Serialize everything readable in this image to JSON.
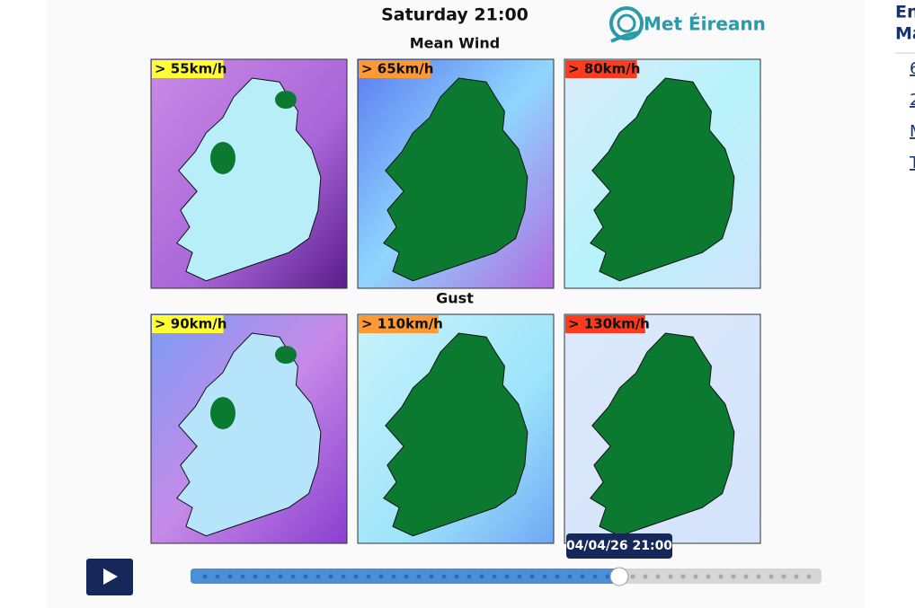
{
  "header": {
    "title": "Saturday 21:00",
    "logo": "Met Éireann"
  },
  "sections": [
    {
      "title": "Mean Wind",
      "panels": [
        {
          "label": "> 55km/h"
        },
        {
          "label": "> 65km/h"
        },
        {
          "label": "> 80km/h"
        }
      ]
    },
    {
      "title": "Gust",
      "panels": [
        {
          "label": "> 90km/h"
        },
        {
          "label": "> 110km/h"
        },
        {
          "label": "> 130km/h"
        }
      ]
    }
  ],
  "timeline": {
    "tooltip": "04/04/26 21:00"
  },
  "sidebar": {
    "heading": [
      "En",
      "Ma"
    ],
    "items": [
      "6",
      "2",
      "M",
      "T"
    ]
  }
}
